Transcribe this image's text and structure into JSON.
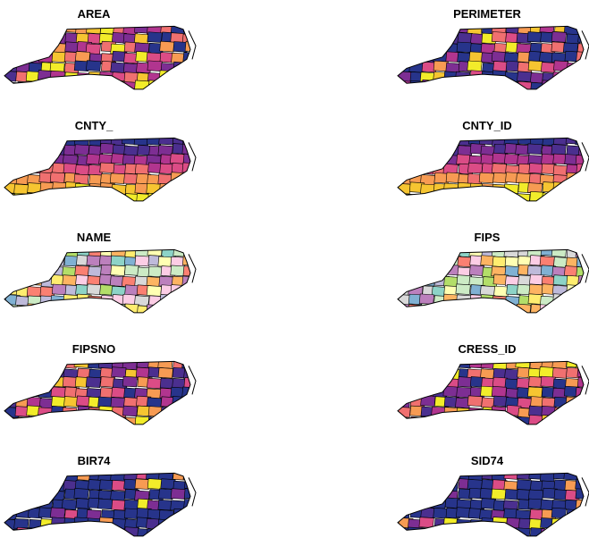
{
  "panels": [
    {
      "title": "AREA",
      "fill": "random",
      "colors": [
        "#27348b",
        "#4b2f8f",
        "#7d2e93",
        "#b1358f",
        "#db4c86",
        "#f07070",
        "#f79b53",
        "#f6c531",
        "#f2ec2a"
      ]
    },
    {
      "title": "PERIMETER",
      "fill": "skewed",
      "colors": [
        "#27348b",
        "#4b2f8f",
        "#7d2e93",
        "#b1358f",
        "#db4c86",
        "#f07070",
        "#f79b53",
        "#f6c531",
        "#f2ec2a"
      ]
    },
    {
      "title": "CNTY_",
      "fill": "gradient",
      "colors": [
        "#27348b",
        "#4b2f8f",
        "#7d2e93",
        "#b1358f",
        "#db4c86",
        "#f07070",
        "#f79b53",
        "#f6c531",
        "#f2ec2a"
      ]
    },
    {
      "title": "CNTY_ID",
      "fill": "gradient",
      "colors": [
        "#27348b",
        "#4b2f8f",
        "#7d2e93",
        "#b1358f",
        "#db4c86",
        "#f07070",
        "#f79b53",
        "#f6c531",
        "#f2ec2a"
      ]
    },
    {
      "title": "NAME",
      "fill": "random",
      "colors": [
        "#8dd3c7",
        "#ffffb3",
        "#bebada",
        "#fb8072",
        "#80b1d3",
        "#fdb462",
        "#b3de69",
        "#fccde5",
        "#d9d9d9",
        "#bc80bd",
        "#ccebc5",
        "#ffed6f"
      ]
    },
    {
      "title": "FIPS",
      "fill": "random",
      "colors": [
        "#8dd3c7",
        "#ffffb3",
        "#bebada",
        "#fb8072",
        "#80b1d3",
        "#fdb462",
        "#b3de69",
        "#fccde5",
        "#d9d9d9",
        "#bc80bd",
        "#ccebc5",
        "#ffed6f"
      ]
    },
    {
      "title": "FIPSNO",
      "fill": "random",
      "colors": [
        "#27348b",
        "#4b2f8f",
        "#7d2e93",
        "#b1358f",
        "#db4c86",
        "#f07070",
        "#f79b53",
        "#f6c531",
        "#f2ec2a"
      ]
    },
    {
      "title": "CRESS_ID",
      "fill": "random",
      "colors": [
        "#27348b",
        "#4b2f8f",
        "#7d2e93",
        "#b1358f",
        "#db4c86",
        "#f07070",
        "#f79b53",
        "#f6c531",
        "#f2ec2a"
      ]
    },
    {
      "title": "BIR74",
      "fill": "skewed",
      "colors": [
        "#27348b",
        "#27348b",
        "#27348b",
        "#4b2f8f",
        "#7d2e93",
        "#db4c86",
        "#f79b53",
        "#f2ec2a"
      ]
    },
    {
      "title": "SID74",
      "fill": "skewed",
      "colors": [
        "#27348b",
        "#27348b",
        "#27348b",
        "#4b2f8f",
        "#7d2e93",
        "#db4c86",
        "#f79b53",
        "#f2ec2a"
      ]
    }
  ]
}
